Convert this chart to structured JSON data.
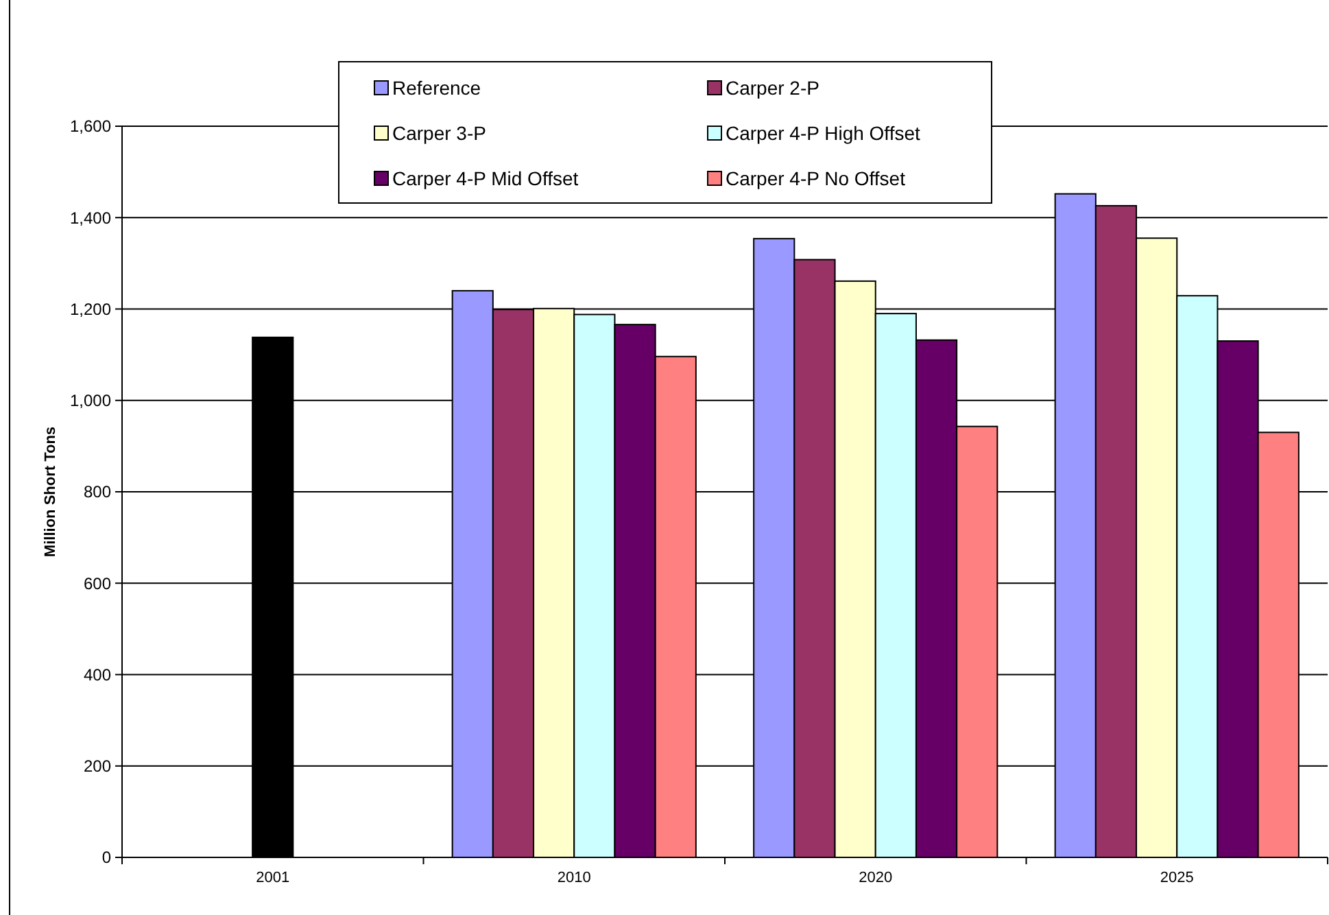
{
  "chart_data": {
    "type": "bar",
    "ylabel": "Million Short Tons",
    "categories": [
      "2001",
      "2010",
      "2020",
      "2025"
    ],
    "series": [
      {
        "color": "#000000",
        "values": [
          1138,
          null,
          null,
          null
        ]
      },
      {
        "name": "Reference",
        "color": "#9999ff",
        "values": [
          null,
          1240,
          1354,
          1452
        ]
      },
      {
        "name": "Carper 2-P",
        "color": "#993366",
        "values": [
          null,
          1199,
          1308,
          1426
        ]
      },
      {
        "name": "Carper 3-P",
        "color": "#ffffcc",
        "values": [
          null,
          1201,
          1261,
          1355
        ]
      },
      {
        "name": "Carper 4-P High Offset",
        "color": "#ccffff",
        "values": [
          null,
          1188,
          1190,
          1229
        ]
      },
      {
        "name": "Carper 4-P Mid Offset",
        "color": "#660066",
        "values": [
          null,
          1166,
          1132,
          1130
        ]
      },
      {
        "name": "Carper 4-P No Offset",
        "color": "#ff8080",
        "values": [
          null,
          1096,
          943,
          930
        ]
      }
    ],
    "ylim": [
      0,
      1600
    ],
    "yticks": [
      0,
      200,
      400,
      600,
      800,
      {
        "value": 1000,
        "label": "1,000"
      },
      {
        "value": 1200,
        "label": "1,200"
      },
      {
        "value": 1400,
        "label": "1,400"
      },
      {
        "value": 1600,
        "label": "1,600"
      }
    ],
    "grid": "y",
    "legend": "top"
  }
}
